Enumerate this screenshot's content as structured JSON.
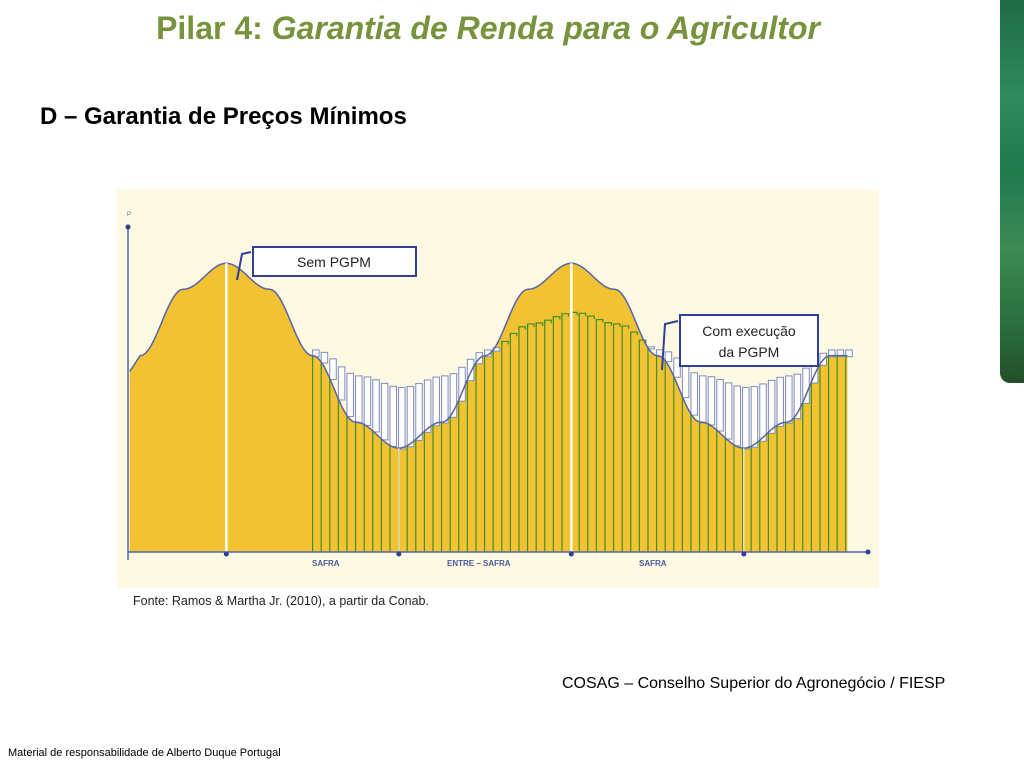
{
  "slide": {
    "title_prefix": "Pilar 4: ",
    "title_emphasis": "Garantia de Renda para o Agricultor",
    "subtitle": "D – Garantia de Preços Mínimos",
    "source": "Fonte: Ramos & Martha Jr. (2010), a partir da Conab.",
    "organization": "COSAG – Conselho Superior do Agronegócio / FIESP",
    "footer": "Material de responsabilidade de Alberto Duque Portugal"
  },
  "colors": {
    "title": "#77933c",
    "fill": "#f2c232",
    "bars": "#3f8f2a",
    "curve": "#5566a6"
  },
  "chart_data": {
    "type": "area",
    "ylabel": "P",
    "x_period_labels": [
      "SAFRA",
      "ENTRE – SAFRA",
      "SAFRA"
    ],
    "x_ticks": [
      1,
      2,
      3,
      4
    ],
    "xlim": [
      0.43,
      4.61
    ],
    "ylim": [
      0,
      115
    ],
    "x": [
      0.5,
      0.75,
      1,
      1.25,
      1.5,
      1.75,
      2,
      2.25,
      2.5,
      2.75,
      3,
      3.25,
      3.5,
      3.75,
      4,
      4.25,
      4.5
    ],
    "bars_start": 1.5,
    "series": [
      {
        "name": "Sem PGPM",
        "values": [
          68,
          91,
          100,
          91,
          68,
          45,
          36,
          45,
          68,
          91,
          100,
          91,
          68,
          45,
          36,
          45,
          68
        ]
      },
      {
        "name": "Com execução da PGPM",
        "values": [
          70,
          79,
          83,
          79,
          70,
          61,
          57,
          61,
          70,
          79,
          83,
          79,
          70,
          61,
          57,
          61,
          70
        ]
      }
    ],
    "annotations": [
      "Sem PGPM",
      "Com execução",
      "da PGPM"
    ]
  }
}
